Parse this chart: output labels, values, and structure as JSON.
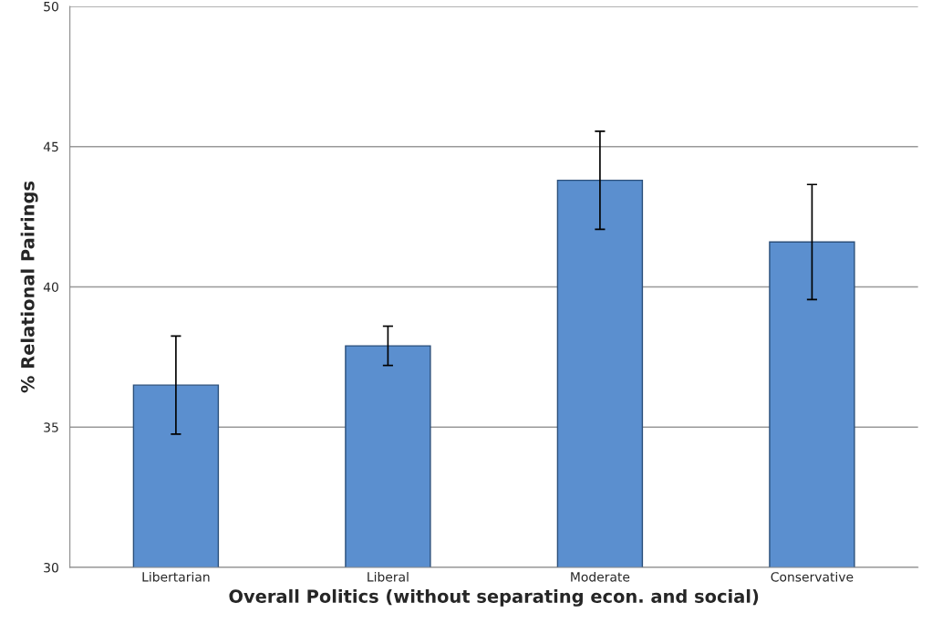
{
  "chart_data": {
    "type": "bar",
    "xlabel": "Overall Politics (without separating econ. and social)",
    "ylabel": "% Relational Pairings",
    "categories": [
      "Libertarian",
      "Liberal",
      "Moderate",
      "Conservative"
    ],
    "values": [
      36.5,
      37.9,
      43.8,
      41.6
    ],
    "errors": [
      1.75,
      0.7,
      1.75,
      2.05
    ],
    "color": "#5b8fcf",
    "ylim": [
      30,
      50
    ],
    "yticks": [
      30,
      35,
      40,
      45,
      50
    ],
    "grid": "y"
  }
}
